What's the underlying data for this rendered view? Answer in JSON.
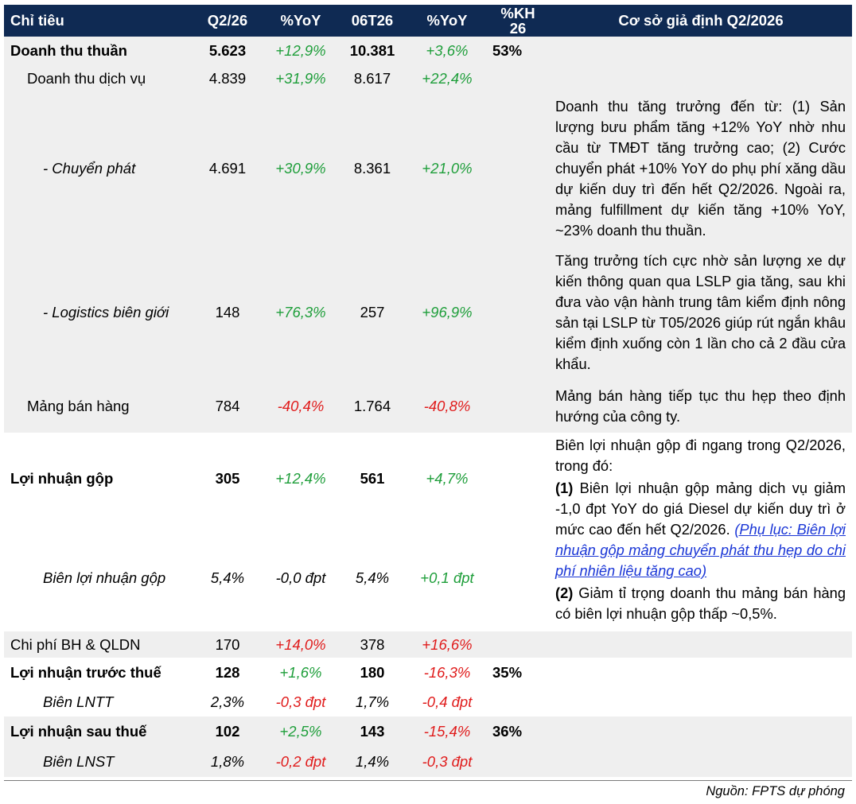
{
  "headers": [
    "Chỉ tiêu",
    "Q2/26",
    "%YoY",
    "06T26",
    "%YoY",
    "%KH\n26",
    "Cơ sở giả định Q2/2026"
  ],
  "rows": [
    {
      "name": "Doanh thu thuần",
      "q": "5.623",
      "yoy1": "+12,9%",
      "ytd": "10.381",
      "yoy2": "+3,6%",
      "kh": "53%"
    },
    {
      "name": "Doanh thu dịch vụ",
      "q": "4.839",
      "yoy1": "+31,9%",
      "ytd": "8.617",
      "yoy2": "+22,4%",
      "kh": ""
    },
    {
      "name": "- Chuyển phát",
      "q": "4.691",
      "yoy1": "+30,9%",
      "ytd": "8.361",
      "yoy2": "+21,0%",
      "kh": ""
    },
    {
      "name": "- Logistics biên giới",
      "q": "148",
      "yoy1": "+76,3%",
      "ytd": "257",
      "yoy2": "+96,9%",
      "kh": ""
    },
    {
      "name": "Mảng bán hàng",
      "q": "784",
      "yoy1": "-40,4%",
      "ytd": "1.764",
      "yoy2": "-40,8%",
      "kh": ""
    },
    {
      "name": "Lợi nhuận gộp",
      "q": "305",
      "yoy1": "+12,4%",
      "ytd": "561",
      "yoy2": "+4,7%",
      "kh": ""
    },
    {
      "name": "Biên lợi nhuận gộp",
      "q": "5,4%",
      "yoy1": "-0,0 đpt",
      "ytd": "5,4%",
      "yoy2": "+0,1 đpt",
      "kh": ""
    },
    {
      "name": "Chi phí BH & QLDN",
      "q": "170",
      "yoy1": "+14,0%",
      "ytd": "378",
      "yoy2": "+16,6%",
      "kh": ""
    },
    {
      "name": "Lợi nhuận trước thuế",
      "q": "128",
      "yoy1": "+1,6%",
      "ytd": "180",
      "yoy2": "-16,3%",
      "kh": "35%"
    },
    {
      "name": "Biên LNTT",
      "q": "2,3%",
      "yoy1": "-0,3 đpt",
      "ytd": "1,7%",
      "yoy2": "-0,4 đpt",
      "kh": ""
    },
    {
      "name": "Lợi nhuận sau thuế",
      "q": "102",
      "yoy1": "+2,5%",
      "ytd": "143",
      "yoy2": "-15,4%",
      "kh": "36%"
    },
    {
      "name": "Biên LNST",
      "q": "1,8%",
      "yoy1": "-0,2 đpt",
      "ytd": "1,4%",
      "yoy2": "-0,3 đpt",
      "kh": ""
    }
  ],
  "notes": {
    "chuyen_phat": "Doanh thu tăng trưởng đến từ: (1) Sản lượng bưu phẩm tăng +12% YoY nhờ nhu cầu từ TMĐT tăng trưởng cao; (2) Cước chuyển phát +10% YoY do phụ phí xăng dầu dự kiến duy trì đến hết Q2/2026. Ngoài ra, mảng fulfillment dự kiến tăng +10% YoY, ~23% doanh thu thuần.",
    "logistics": "Tăng trưởng tích cực nhờ sản lượng xe dự kiến thông quan qua LSLP gia tăng, sau khi đưa vào vận hành trung tâm kiểm định nông sản tại LSLP từ T05/2026 giúp rút ngắn khâu kiểm định xuống còn 1 lần cho cả 2 đầu cửa khẩu.",
    "ban_hang": "Mảng bán hàng tiếp tục thu hẹp theo định hướng của công ty.",
    "gross_intro": "Biên lợi nhuận gộp đi ngang trong Q2/2026, trong đó:",
    "gross_p1_label": "(1)",
    "gross_p1_text": " Biên lợi nhuận gộp mảng dịch vụ giảm -1,0 đpt YoY do giá Diesel dự kiến duy trì ở mức cao đến hết Q2/2026. ",
    "gross_p1_link": "(Phụ lục: Biên lợi nhuận gộp mảng chuyển phát thu hẹp do chi phí nhiên liệu tăng cao)",
    "gross_p2_label": "(2)",
    "gross_p2_text": " Giảm tỉ trọng doanh thu mảng bán hàng có biên lợi nhuận gộp thấp ~0,5%."
  },
  "source": "Nguồn: FPTS dự phóng"
}
